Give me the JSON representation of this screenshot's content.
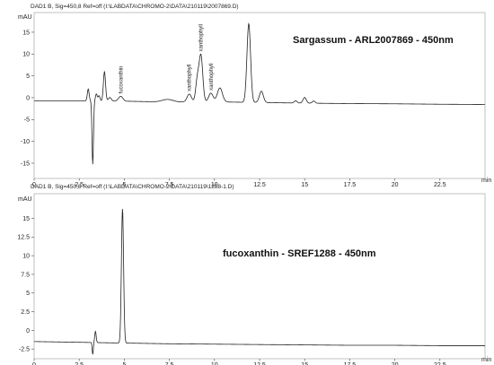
{
  "chart_data": [
    {
      "type": "line",
      "header": "DAD1 B, Sig=450,8 Ref=off (I:\\LABDATA\\CHROMO-2\\DATA\\210119\\2007869.D)",
      "title": "Sargassum - ARL2007869 - 450nm",
      "ylabel": "mAU",
      "xlabel": "min",
      "xlim": [
        0,
        25
      ],
      "ylim": [
        -18.5,
        19.5
      ],
      "xticks": [
        "0",
        "2.5",
        "5",
        "7.5",
        "10",
        "12.5",
        "15",
        "17.5",
        "20",
        "22.5"
      ],
      "yticks": [
        "-15",
        "-10",
        "-5",
        "0",
        "5",
        "10",
        "15"
      ],
      "baseline": [
        [
          0,
          -0.7
        ],
        [
          2.5,
          -0.7
        ],
        [
          5,
          -0.8
        ],
        [
          7.5,
          -1.0
        ],
        [
          10,
          -0.95
        ],
        [
          12.5,
          -1.1
        ],
        [
          15,
          -1.25
        ],
        [
          17.5,
          -1.35
        ],
        [
          20,
          -1.4
        ],
        [
          22.5,
          -1.5
        ],
        [
          25,
          -1.55
        ]
      ],
      "peaks": [
        {
          "t": 3.0,
          "h": 2.7,
          "w": 0.05
        },
        {
          "t": 3.25,
          "h": -14.5,
          "w": 0.04
        },
        {
          "t": 3.45,
          "h": 1.6,
          "w": 0.05
        },
        {
          "t": 3.6,
          "h": 1.2,
          "w": 0.05
        },
        {
          "t": 3.9,
          "h": 6.7,
          "w": 0.06
        },
        {
          "t": 4.2,
          "h": 0.8,
          "w": 0.08
        },
        {
          "t": 4.8,
          "h": 1.1,
          "w": 0.12
        },
        {
          "t": 7.4,
          "h": 0.6,
          "w": 0.3
        },
        {
          "t": 8.6,
          "h": 1.8,
          "w": 0.12
        },
        {
          "t": 9.05,
          "h": 5.0,
          "w": 0.09
        },
        {
          "t": 9.25,
          "h": 10.5,
          "w": 0.1
        },
        {
          "t": 9.8,
          "h": 2.0,
          "w": 0.12
        },
        {
          "t": 10.3,
          "h": 3.2,
          "w": 0.14
        },
        {
          "t": 11.9,
          "h": 18.0,
          "w": 0.1
        },
        {
          "t": 12.6,
          "h": 2.6,
          "w": 0.11
        },
        {
          "t": 14.5,
          "h": 0.5,
          "w": 0.08
        },
        {
          "t": 15.0,
          "h": 1.3,
          "w": 0.09
        },
        {
          "t": 15.5,
          "h": 0.5,
          "w": 0.08
        }
      ],
      "annotations": [
        {
          "label": "fucoxanthin",
          "t": 4.8
        },
        {
          "label": "xanthophyll",
          "t": 8.6
        },
        {
          "label": "xanthophyll",
          "t": 9.25
        },
        {
          "label": "xanthophyll",
          "t": 9.8
        }
      ]
    },
    {
      "type": "line",
      "header": "DAD1 B, Sig=450,8 Ref=off (I:\\LABDATA\\CHROMO-2\\DATA\\210119\\1288-1.D)",
      "title": "fucoxanthin - SREF1288 - 450nm",
      "ylabel": "mAU",
      "xlabel": "min",
      "xlim": [
        0,
        25
      ],
      "ylim": [
        -3.8,
        18.3
      ],
      "xticks": [
        "0",
        "2.5",
        "5",
        "7.5",
        "10",
        "12.5",
        "15",
        "17.5",
        "20",
        "22.5"
      ],
      "yticks": [
        "-2.5",
        "0",
        "2.5",
        "5",
        "7.5",
        "10",
        "12.5",
        "15"
      ],
      "baseline": [
        [
          0,
          -1.5
        ],
        [
          2.5,
          -1.6
        ],
        [
          5,
          -1.7
        ],
        [
          7.5,
          -1.8
        ],
        [
          10,
          -1.85
        ],
        [
          12.5,
          -1.9
        ],
        [
          15,
          -1.95
        ],
        [
          17.5,
          -2.0
        ],
        [
          20,
          -2.0
        ],
        [
          22.5,
          -2.05
        ],
        [
          25,
          -2.05
        ]
      ],
      "peaks": [
        {
          "t": 3.25,
          "h": -1.6,
          "w": 0.03
        },
        {
          "t": 3.4,
          "h": 1.5,
          "w": 0.04
        },
        {
          "t": 4.9,
          "h": 18.0,
          "w": 0.06
        }
      ],
      "annotations": []
    }
  ]
}
